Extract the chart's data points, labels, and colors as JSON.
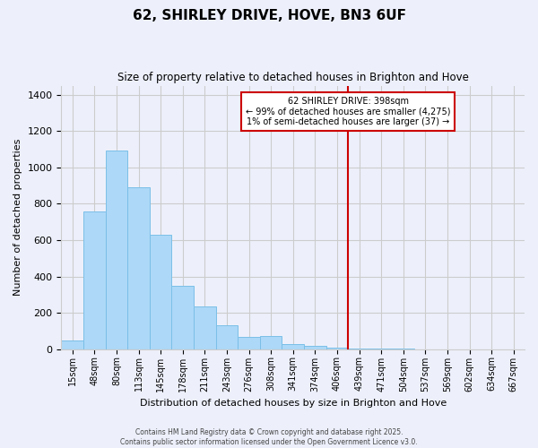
{
  "title": "62, SHIRLEY DRIVE, HOVE, BN3 6UF",
  "subtitle": "Size of property relative to detached houses in Brighton and Hove",
  "xlabel": "Distribution of detached houses by size in Brighton and Hove",
  "ylabel": "Number of detached properties",
  "categories": [
    "15sqm",
    "48sqm",
    "80sqm",
    "113sqm",
    "145sqm",
    "178sqm",
    "211sqm",
    "243sqm",
    "276sqm",
    "308sqm",
    "341sqm",
    "374sqm",
    "406sqm",
    "439sqm",
    "471sqm",
    "504sqm",
    "537sqm",
    "569sqm",
    "602sqm",
    "634sqm",
    "667sqm"
  ],
  "values": [
    50,
    760,
    1095,
    893,
    630,
    347,
    233,
    133,
    65,
    70,
    27,
    20,
    10,
    5,
    2,
    1,
    0,
    0,
    0,
    0,
    0
  ],
  "bar_color": "#add8f7",
  "bar_edge_color": "#7bbfe8",
  "vline_color": "#cc0000",
  "annotation_title": "62 SHIRLEY DRIVE: 398sqm",
  "annotation_line1": "← 99% of detached houses are smaller (4,275)",
  "annotation_line2": "1% of semi-detached houses are larger (37) →",
  "annotation_box_color": "#ffffff",
  "annotation_box_edge_color": "#cc0000",
  "ylim": [
    0,
    1450
  ],
  "yticks": [
    0,
    200,
    400,
    600,
    800,
    1000,
    1200,
    1400
  ],
  "grid_color": "#cccccc",
  "background_color": "#edf0fb",
  "footer_line1": "Contains HM Land Registry data © Crown copyright and database right 2025.",
  "footer_line2": "Contains public sector information licensed under the Open Government Licence v3.0."
}
